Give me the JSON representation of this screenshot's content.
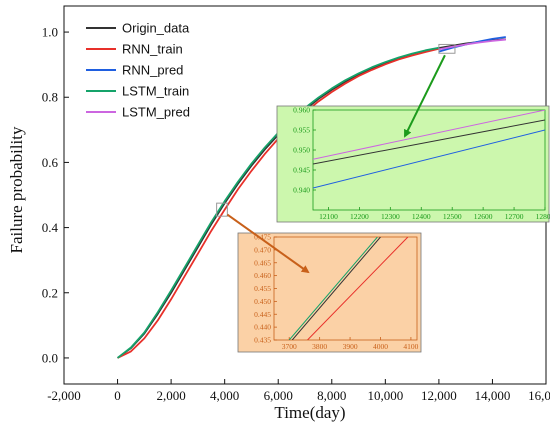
{
  "chart_data": {
    "type": "line",
    "xlabel": "Time(day)",
    "ylabel": "Failure probability",
    "xlim": [
      -2000,
      16000
    ],
    "ylim": [
      -0.08,
      1.08
    ],
    "xticks": [
      -2000,
      0,
      2000,
      4000,
      6000,
      8000,
      10000,
      12000,
      14000,
      16000
    ],
    "xtick_labels": [
      "-2,000",
      "0",
      "2,000",
      "4,000",
      "6,000",
      "8,000",
      "10,000",
      "12,000",
      "14,000",
      "16,000"
    ],
    "yticks": [
      0.0,
      0.2,
      0.4,
      0.6,
      0.8,
      1.0
    ],
    "ytick_labels": [
      "0.0",
      "0.2",
      "0.4",
      "0.6",
      "0.8",
      "1.0"
    ],
    "legend_position": "top-left",
    "series": [
      {
        "name": "Origin_data",
        "color": "#333333",
        "x": [
          0,
          500,
          1000,
          1500,
          2000,
          2500,
          3000,
          3500,
          4000,
          4500,
          5000,
          5500,
          6000,
          6500,
          7000,
          7500,
          8000,
          8500,
          9000,
          9500,
          10000,
          10500,
          11000,
          11500,
          12000,
          12500,
          13000,
          13500,
          14000,
          14500
        ],
        "y": [
          0.0,
          0.03,
          0.075,
          0.135,
          0.2,
          0.27,
          0.34,
          0.41,
          0.475,
          0.535,
          0.59,
          0.64,
          0.685,
          0.726,
          0.762,
          0.795,
          0.823,
          0.848,
          0.87,
          0.889,
          0.905,
          0.919,
          0.931,
          0.942,
          0.951,
          0.958,
          0.965,
          0.97,
          0.975,
          0.978
        ]
      },
      {
        "name": "RNN_train",
        "color": "#e8302a",
        "x": [
          0,
          500,
          1000,
          1500,
          2000,
          2500,
          3000,
          3500,
          4000,
          4500,
          5000,
          5500,
          6000,
          6500,
          7000,
          7500,
          8000,
          8500,
          9000,
          9500,
          10000,
          10500,
          11000,
          11500,
          12000
        ],
        "y": [
          0.0,
          0.02,
          0.06,
          0.115,
          0.18,
          0.25,
          0.32,
          0.39,
          0.455,
          0.518,
          0.574,
          0.626,
          0.673,
          0.716,
          0.753,
          0.787,
          0.816,
          0.842,
          0.865,
          0.884,
          0.901,
          0.916,
          0.928,
          0.939,
          0.949
        ]
      },
      {
        "name": "RNN_pred",
        "color": "#1f5fe0",
        "x": [
          12000,
          12500,
          13000,
          13500,
          14000,
          14500
        ],
        "y": [
          0.94,
          0.952,
          0.962,
          0.971,
          0.979,
          0.985
        ]
      },
      {
        "name": "LSTM_train",
        "color": "#15a36a",
        "x": [
          0,
          500,
          1000,
          1500,
          2000,
          2500,
          3000,
          3500,
          4000,
          4500,
          5000,
          5500,
          6000,
          6500,
          7000,
          7500,
          8000,
          8500,
          9000,
          9500,
          10000,
          10500,
          11000,
          11500,
          12000
        ],
        "y": [
          0.0,
          0.032,
          0.078,
          0.14,
          0.207,
          0.277,
          0.347,
          0.417,
          0.481,
          0.541,
          0.596,
          0.646,
          0.691,
          0.731,
          0.767,
          0.799,
          0.827,
          0.852,
          0.873,
          0.892,
          0.908,
          0.922,
          0.934,
          0.944,
          0.952
        ]
      },
      {
        "name": "LSTM_pred",
        "color": "#cc66e0",
        "x": [
          12000,
          12500,
          13000,
          13500,
          14000,
          14500
        ],
        "y": [
          0.947,
          0.955,
          0.962,
          0.968,
          0.973,
          0.977
        ]
      }
    ],
    "insets": [
      {
        "name": "inset-top-right",
        "background": "#ccf7ad",
        "tick_color": "#1a9a1a",
        "xlim": [
          12050,
          12800
        ],
        "ylim": [
          0.935,
          0.96
        ],
        "xticks": [
          12100,
          12200,
          12300,
          12400,
          12500,
          12600,
          12700,
          12800
        ],
        "xtick_labels": [
          "12100",
          "12200",
          "12300",
          "12400",
          "12500",
          "12600",
          "12700",
          "12800"
        ],
        "yticks": [
          0.94,
          0.945,
          0.95,
          0.955,
          0.96
        ],
        "ytick_labels": [
          "0.940",
          "0.945",
          "0.950",
          "0.955",
          "0.960"
        ],
        "source_box": {
          "xlim": [
            12000,
            12600
          ],
          "ylim": [
            0.935,
            0.962
          ]
        },
        "series": [
          {
            "name": "LSTM_pred",
            "x": [
              12050,
              12800
            ],
            "y": [
              0.9477,
              0.96
            ]
          },
          {
            "name": "Origin_data",
            "x": [
              12050,
              12800
            ],
            "y": [
              0.9465,
              0.9575
            ]
          },
          {
            "name": "RNN_pred",
            "x": [
              12050,
              12800
            ],
            "y": [
              0.9405,
              0.955
            ]
          }
        ]
      },
      {
        "name": "inset-center",
        "background": "#fbd1a6",
        "tick_color": "#c8601a",
        "xlim": [
          3650,
          4120
        ],
        "ylim": [
          0.435,
          0.475
        ],
        "xticks": [
          3700,
          3800,
          3900,
          4000,
          4100
        ],
        "xtick_labels": [
          "3700",
          "3800",
          "3900",
          "4000",
          "4100"
        ],
        "yticks": [
          0.435,
          0.44,
          0.445,
          0.45,
          0.455,
          0.46,
          0.465,
          0.47,
          0.475
        ],
        "ytick_labels": [
          "0.435",
          "0.440",
          "0.445",
          "0.450",
          "0.455",
          "0.460",
          "0.465",
          "0.470",
          "0.475"
        ],
        "source_box": {
          "xlim": [
            3700,
            4100
          ],
          "ylim": [
            0.435,
            0.475
          ]
        },
        "series": [
          {
            "name": "LSTM_train",
            "x": [
              3700,
              3990
            ],
            "y": [
              0.435,
              0.475
            ]
          },
          {
            "name": "Origin_data",
            "x": [
              3710,
              4000
            ],
            "y": [
              0.435,
              0.475
            ]
          },
          {
            "name": "RNN_train",
            "x": [
              3760,
              4090
            ],
            "y": [
              0.435,
              0.475
            ]
          }
        ]
      }
    ]
  }
}
